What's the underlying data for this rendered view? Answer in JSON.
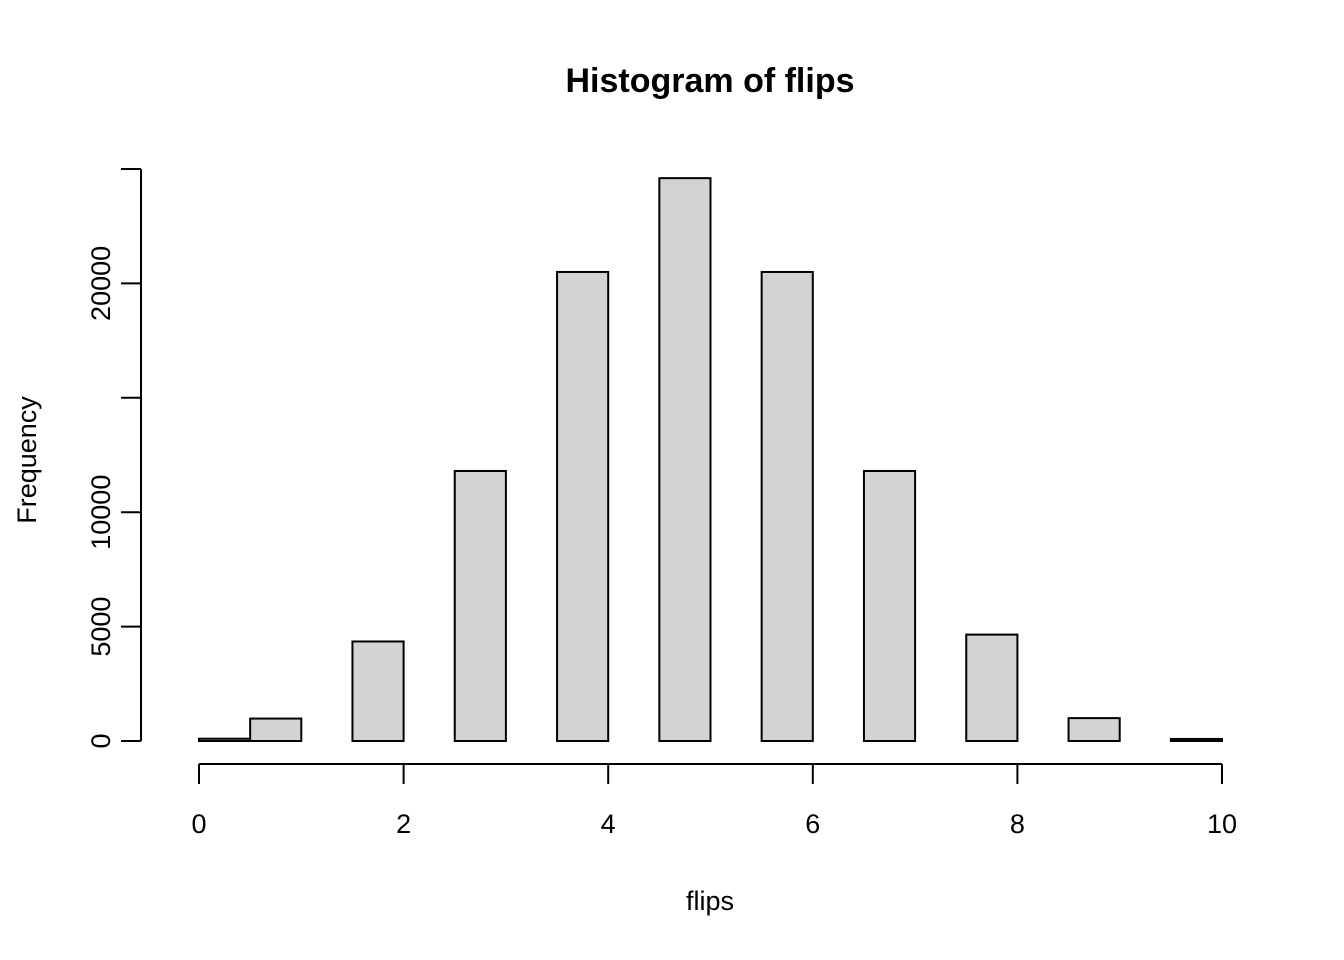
{
  "chart_data": {
    "type": "bar",
    "title": "Histogram of flips",
    "xlabel": "flips",
    "ylabel": "Frequency",
    "xlim": [
      0,
      10
    ],
    "ylim": [
      0,
      25000
    ],
    "x_ticks": [
      0,
      2,
      4,
      6,
      8,
      10
    ],
    "y_ticks": [
      0,
      5000,
      10000,
      15000,
      20000,
      25000
    ],
    "y_tick_labels": [
      "0",
      "5000",
      "10000",
      "",
      "20000",
      ""
    ],
    "bars": [
      {
        "x0": 0.0,
        "x1": 0.5,
        "count": 100
      },
      {
        "x0": 0.5,
        "x1": 1.0,
        "count": 980
      },
      {
        "x0": 1.5,
        "x1": 2.0,
        "count": 4350
      },
      {
        "x0": 2.5,
        "x1": 3.0,
        "count": 11800
      },
      {
        "x0": 3.5,
        "x1": 4.0,
        "count": 20500
      },
      {
        "x0": 4.5,
        "x1": 5.0,
        "count": 24600
      },
      {
        "x0": 5.5,
        "x1": 6.0,
        "count": 20500
      },
      {
        "x0": 6.5,
        "x1": 7.0,
        "count": 11800
      },
      {
        "x0": 7.5,
        "x1": 8.0,
        "count": 4650
      },
      {
        "x0": 8.5,
        "x1": 9.0,
        "count": 1000
      },
      {
        "x0": 9.5,
        "x1": 10.0,
        "count": 90
      }
    ],
    "grid": false,
    "legend": "none"
  }
}
